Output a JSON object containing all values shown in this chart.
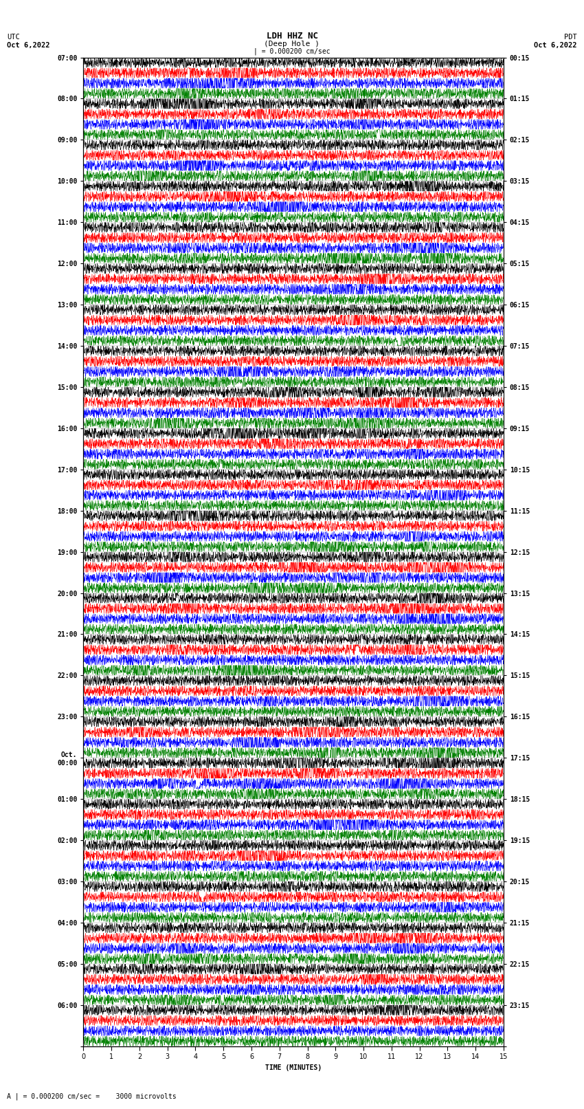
{
  "title_line1": "LDH HHZ NC",
  "title_line2": "(Deep Hole )",
  "scale_label": "| = 0.000200 cm/sec",
  "bottom_label": "A | = 0.000200 cm/sec =    3000 microvolts",
  "xlabel": "TIME (MINUTES)",
  "utc_label": "UTC",
  "utc_date": "Oct 6,2022",
  "pdt_label": "PDT",
  "pdt_date": "Oct 6,2022",
  "left_times": [
    "07:00",
    "08:00",
    "09:00",
    "10:00",
    "11:00",
    "12:00",
    "13:00",
    "14:00",
    "15:00",
    "16:00",
    "17:00",
    "18:00",
    "19:00",
    "20:00",
    "21:00",
    "22:00",
    "23:00",
    "Oct.\n00:00",
    "01:00",
    "02:00",
    "03:00",
    "04:00",
    "05:00",
    "06:00"
  ],
  "right_times": [
    "00:15",
    "01:15",
    "02:15",
    "03:15",
    "04:15",
    "05:15",
    "06:15",
    "07:15",
    "08:15",
    "09:15",
    "10:15",
    "11:15",
    "12:15",
    "13:15",
    "14:15",
    "15:15",
    "16:15",
    "17:15",
    "18:15",
    "19:15",
    "20:15",
    "21:15",
    "22:15",
    "23:15"
  ],
  "n_rows": 24,
  "n_traces_per_row": 4,
  "trace_colors": [
    "black",
    "red",
    "blue",
    "green"
  ],
  "minutes_per_row": 15,
  "bg_color": "white",
  "noise_seed": 42
}
